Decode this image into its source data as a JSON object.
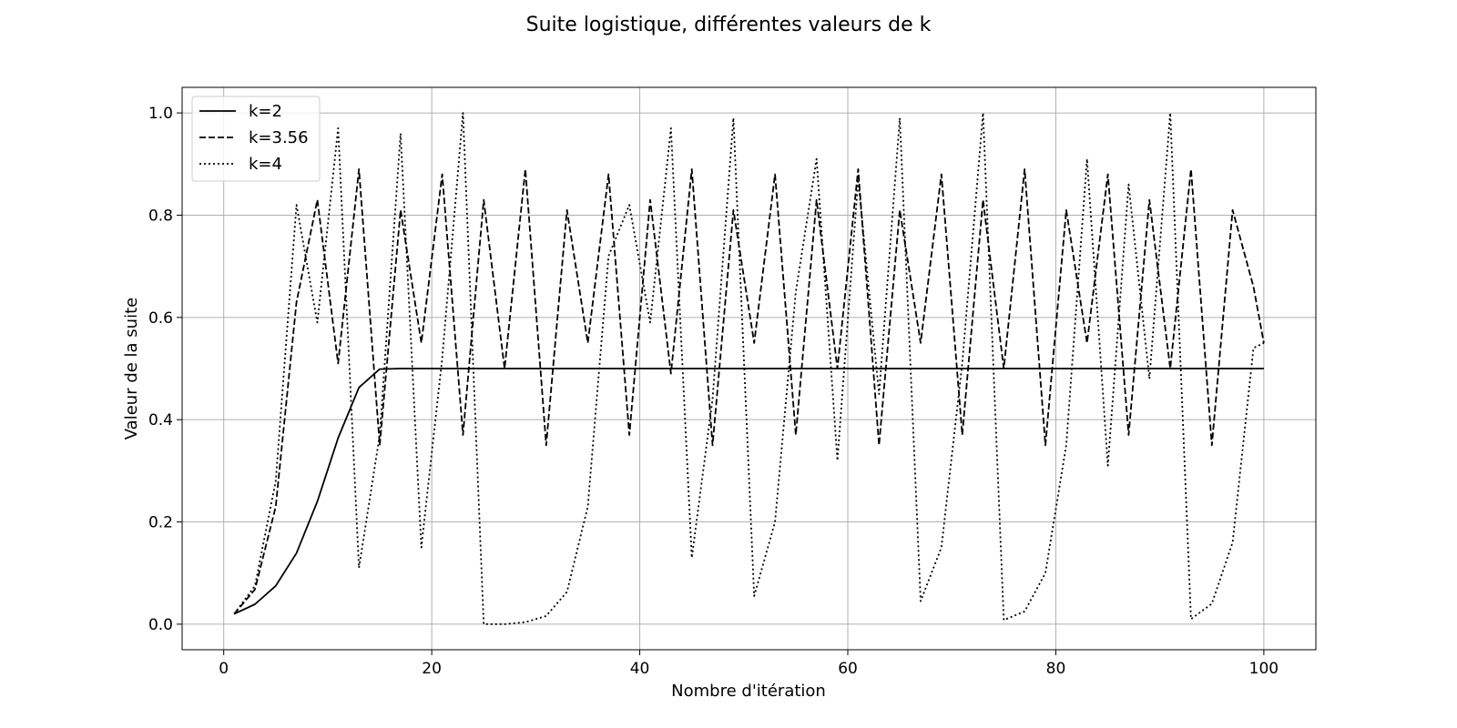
{
  "chart_data": {
    "type": "line",
    "title": "Suite logistique, différentes valeurs de k",
    "xlabel": "Nombre d'itération",
    "ylabel": "Valeur de la suite",
    "xlim": [
      -4,
      105
    ],
    "ylim": [
      -0.05,
      1.05
    ],
    "xticks": [
      0,
      20,
      40,
      60,
      80,
      100
    ],
    "yticks": [
      0.0,
      0.2,
      0.4,
      0.6,
      0.8,
      1.0
    ],
    "xtick_labels": [
      "0",
      "20",
      "40",
      "60",
      "80",
      "100"
    ],
    "ytick_labels": [
      "0.0",
      "0.2",
      "0.4",
      "0.6",
      "0.8",
      "1.0"
    ],
    "grid": true,
    "legend": "top-left",
    "x": [
      1,
      3,
      5,
      7,
      9,
      11,
      13,
      15,
      17,
      19,
      21,
      23,
      25,
      27,
      29,
      31,
      33,
      35,
      37,
      39,
      41,
      43,
      45,
      47,
      49,
      51,
      53,
      55,
      57,
      59,
      61,
      63,
      65,
      67,
      69,
      71,
      73,
      75,
      77,
      79,
      81,
      83,
      85,
      87,
      89,
      91,
      93,
      95,
      97,
      99,
      100
    ],
    "series": [
      {
        "name": "k=2",
        "dash": "solid",
        "values": [
          0.02,
          0.039,
          0.075,
          0.139,
          0.24,
          0.364,
          0.463,
          0.499,
          0.5,
          0.5,
          0.5,
          0.5,
          0.5,
          0.5,
          0.5,
          0.5,
          0.5,
          0.5,
          0.5,
          0.5,
          0.5,
          0.5,
          0.5,
          0.5,
          0.5,
          0.5,
          0.5,
          0.5,
          0.5,
          0.5,
          0.5,
          0.5,
          0.5,
          0.5,
          0.5,
          0.5,
          0.5,
          0.5,
          0.5,
          0.5,
          0.5,
          0.5,
          0.5,
          0.5,
          0.5,
          0.5,
          0.5,
          0.5,
          0.5,
          0.5,
          0.5
        ]
      },
      {
        "name": "k=3.56",
        "dash": "dashed",
        "values": [
          0.02,
          0.068,
          0.23,
          0.63,
          0.83,
          0.51,
          0.89,
          0.35,
          0.81,
          0.55,
          0.88,
          0.37,
          0.83,
          0.5,
          0.89,
          0.35,
          0.81,
          0.55,
          0.88,
          0.37,
          0.83,
          0.49,
          0.89,
          0.35,
          0.81,
          0.55,
          0.88,
          0.37,
          0.83,
          0.5,
          0.89,
          0.35,
          0.81,
          0.55,
          0.88,
          0.37,
          0.83,
          0.5,
          0.89,
          0.35,
          0.81,
          0.55,
          0.88,
          0.37,
          0.83,
          0.5,
          0.89,
          0.35,
          0.81,
          0.66,
          0.55
        ]
      },
      {
        "name": "k=4",
        "dash": "dotted",
        "values": [
          0.02,
          0.075,
          0.28,
          0.82,
          0.59,
          0.97,
          0.11,
          0.37,
          0.96,
          0.15,
          0.52,
          1.0,
          0.0,
          0.0,
          0.004,
          0.016,
          0.063,
          0.23,
          0.72,
          0.82,
          0.59,
          0.97,
          0.13,
          0.44,
          0.99,
          0.055,
          0.2,
          0.65,
          0.91,
          0.32,
          0.87,
          0.45,
          0.99,
          0.045,
          0.15,
          0.51,
          1.0,
          0.008,
          0.025,
          0.1,
          0.35,
          0.91,
          0.31,
          0.86,
          0.48,
          1.0,
          0.01,
          0.04,
          0.16,
          0.54,
          0.55
        ]
      }
    ]
  }
}
